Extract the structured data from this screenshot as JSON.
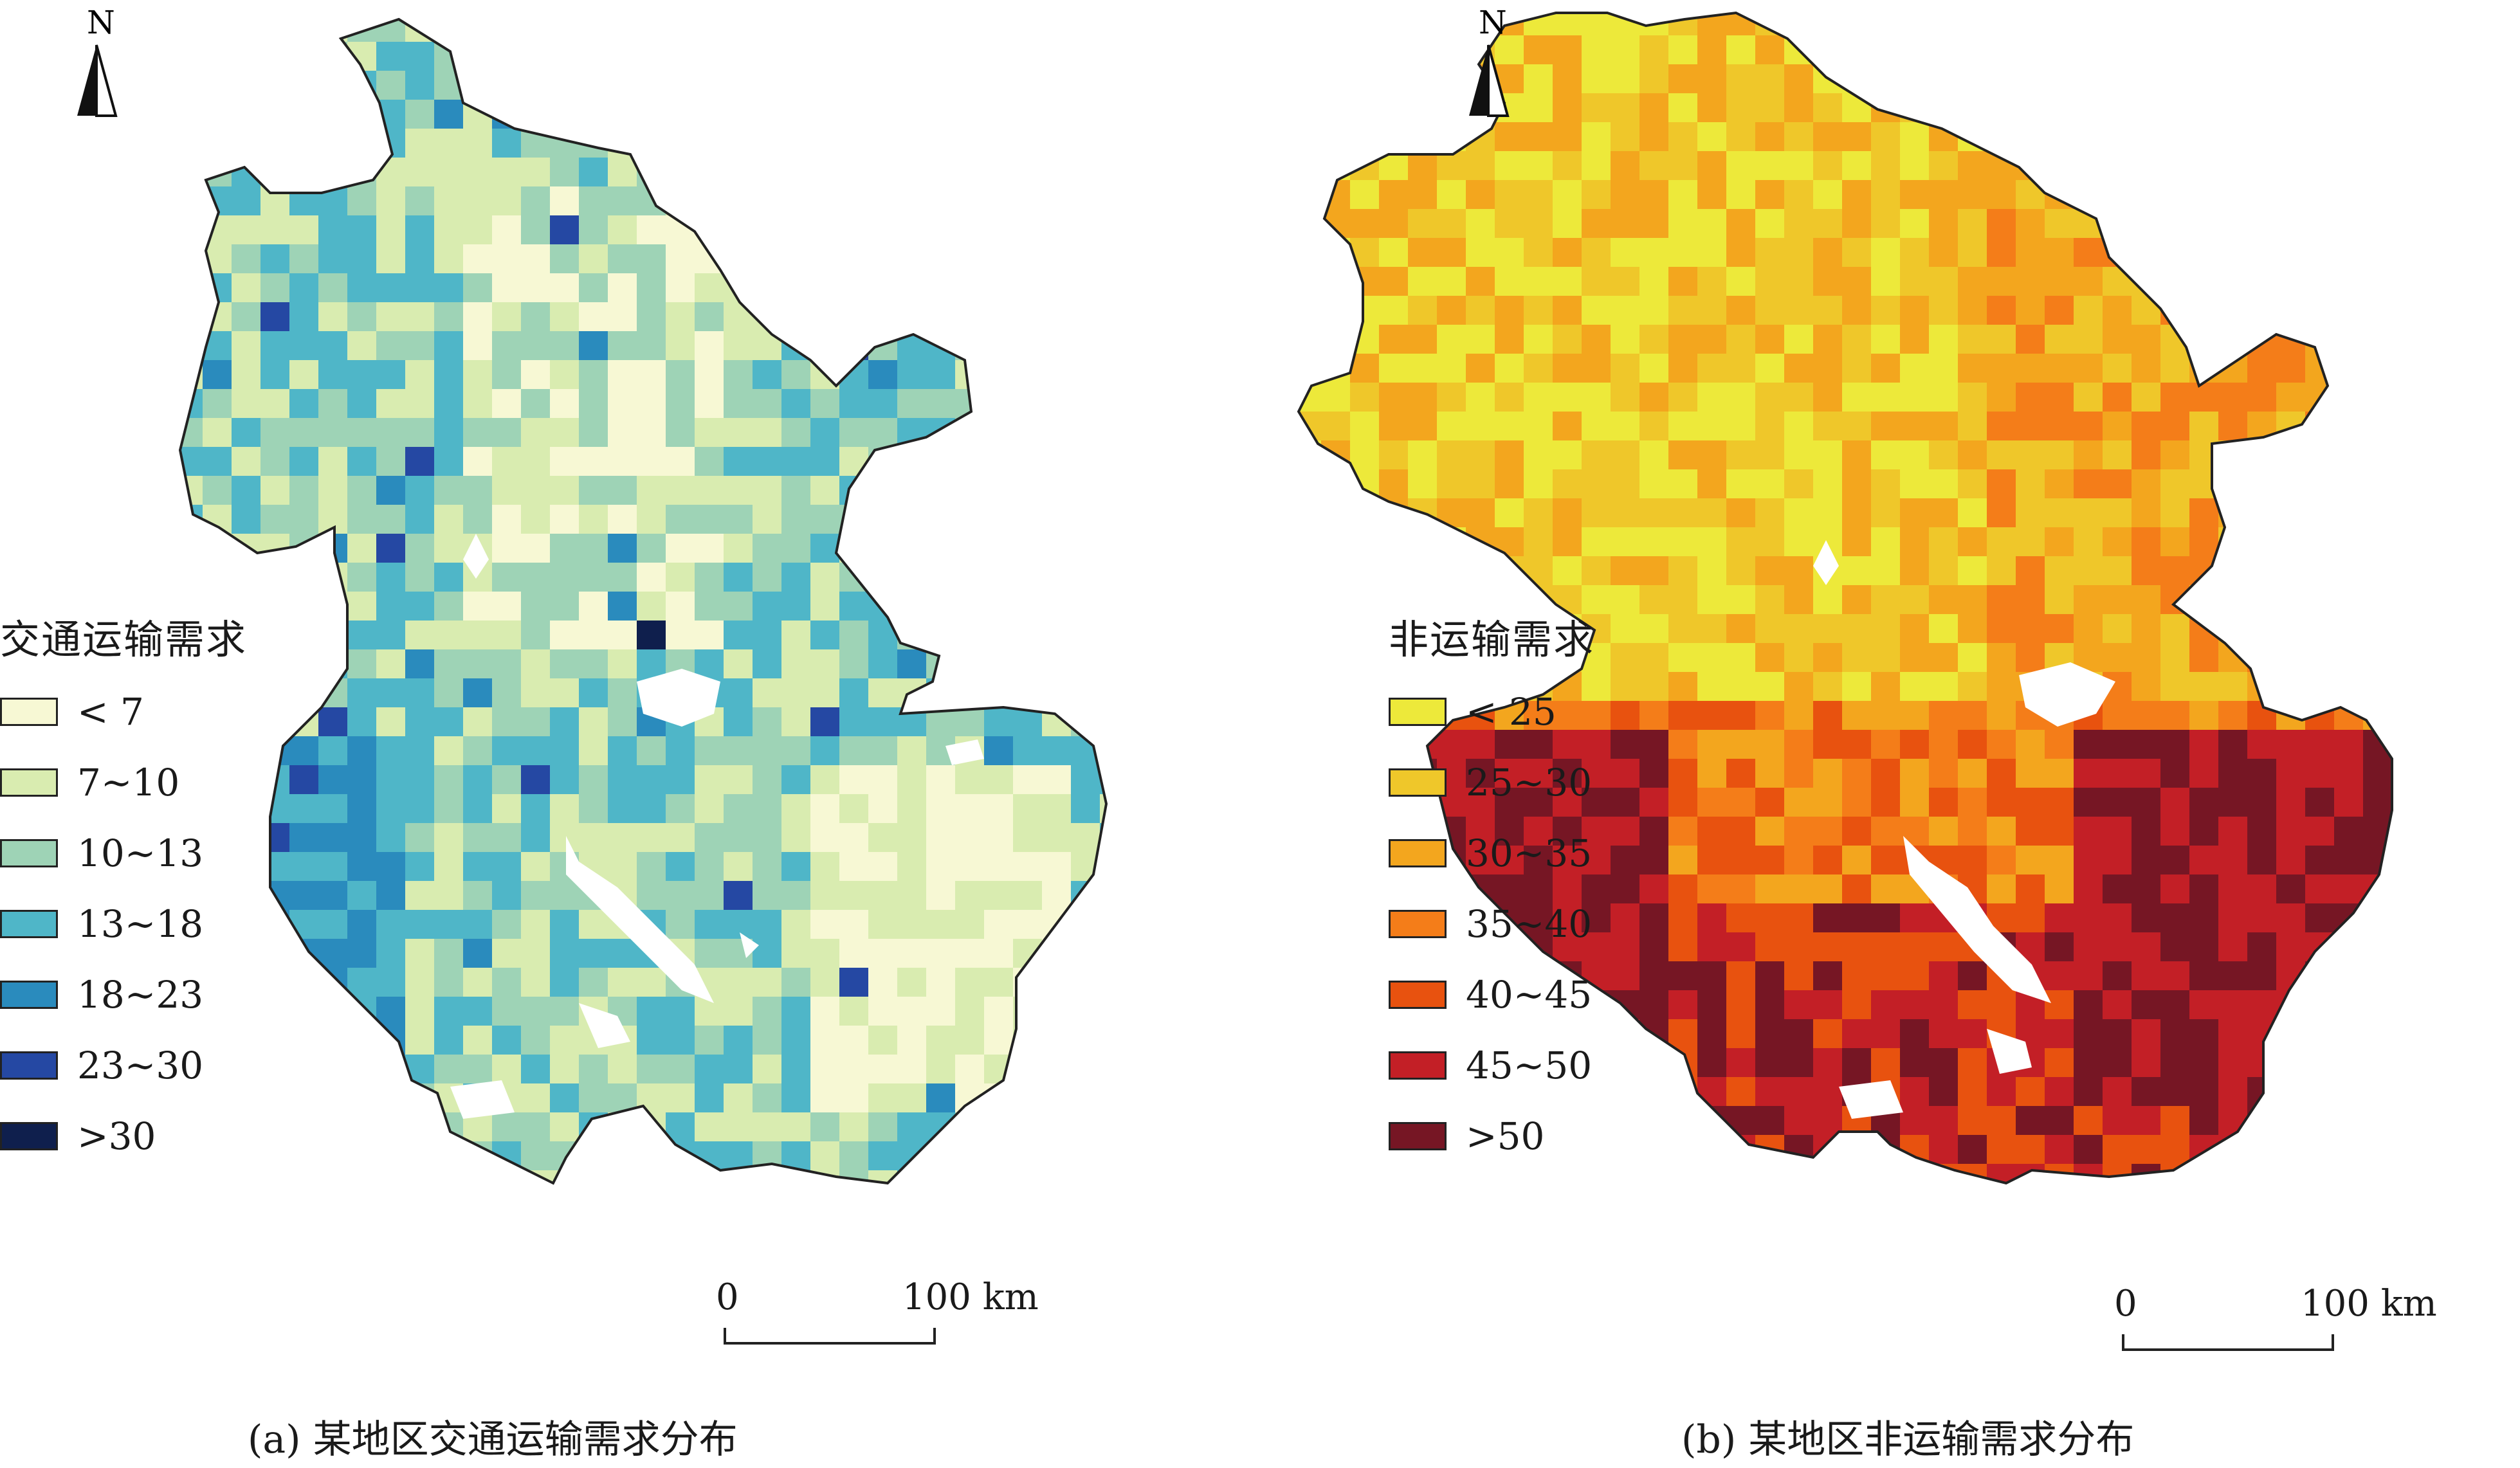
{
  "maps": [
    {
      "id": "a",
      "legend_title": "交通运输需求",
      "classes": [
        {
          "label": "< 7",
          "color": "#f7f8d4"
        },
        {
          "label": "7~10",
          "color": "#d9ecb0"
        },
        {
          "label": "10~13",
          "color": "#9ed3b6"
        },
        {
          "label": "13~18",
          "color": "#4fb6c8"
        },
        {
          "label": "18~23",
          "color": "#2a8bbd"
        },
        {
          "label": "23~30",
          "color": "#2548a3"
        },
        {
          "label": ">30",
          "color": "#0f1f4d"
        }
      ],
      "north_label": "N",
      "scale": {
        "zero": "0",
        "max": "100 km"
      },
      "caption": "(a) 某地区交通运输需求分布"
    },
    {
      "id": "b",
      "legend_title": "非运输需求",
      "classes": [
        {
          "label": "< 25",
          "color": "#ede93a"
        },
        {
          "label": "25~30",
          "color": "#efc72a"
        },
        {
          "label": "30~35",
          "color": "#f3a61e"
        },
        {
          "label": "35~40",
          "color": "#f47d19"
        },
        {
          "label": "40~45",
          "color": "#e8520f"
        },
        {
          "label": "45~50",
          "color": "#c31f26"
        },
        {
          "label": ">50",
          "color": "#761624"
        }
      ],
      "north_label": "N",
      "scale": {
        "zero": "0",
        "max": "100 km"
      },
      "caption": "(b) 某地区非运输需求分布"
    }
  ]
}
